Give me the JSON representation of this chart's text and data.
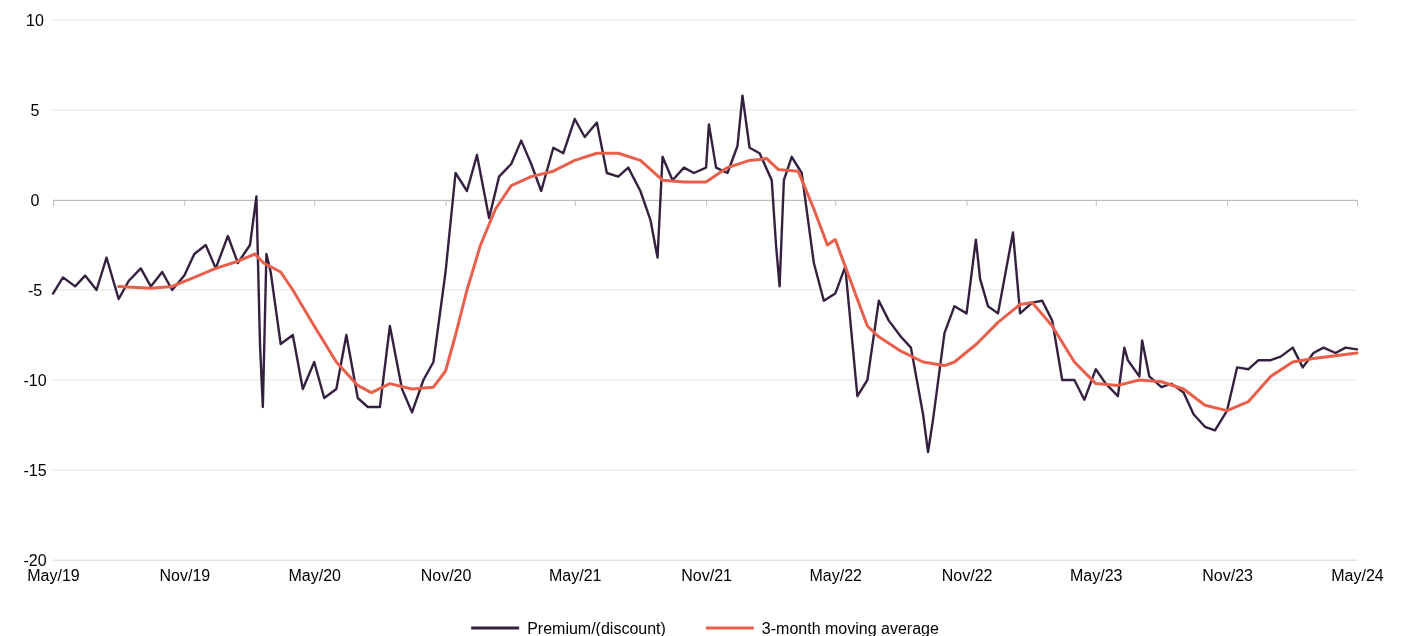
{
  "chart_data": {
    "type": "line",
    "xlim": [
      "2019-05-01",
      "2024-05-01"
    ],
    "xticks": [
      {
        "value": "2019-05-01",
        "label": "May/19"
      },
      {
        "value": "2019-11-01",
        "label": "Nov/19"
      },
      {
        "value": "2020-05-01",
        "label": "May/20"
      },
      {
        "value": "2020-11-01",
        "label": "Nov/20"
      },
      {
        "value": "2021-05-01",
        "label": "May/21"
      },
      {
        "value": "2021-11-01",
        "label": "Nov/21"
      },
      {
        "value": "2022-05-01",
        "label": "May/22"
      },
      {
        "value": "2022-11-01",
        "label": "Nov/22"
      },
      {
        "value": "2023-05-01",
        "label": "May/23"
      },
      {
        "value": "2023-11-01",
        "label": "Nov/23"
      },
      {
        "value": "2024-05-01",
        "label": "May/24"
      }
    ],
    "ylim": [
      -20,
      10
    ],
    "yticks": [
      -20,
      -15,
      -10,
      -5,
      0,
      5,
      10
    ],
    "grid": "y",
    "legend": "bottom",
    "series": [
      {
        "name": "Premium/(discount)",
        "color": "#35213f",
        "x": [
          "2019-05-01",
          "2019-05-15",
          "2019-06-01",
          "2019-06-15",
          "2019-07-01",
          "2019-07-15",
          "2019-08-01",
          "2019-08-15",
          "2019-09-01",
          "2019-09-15",
          "2019-10-01",
          "2019-10-15",
          "2019-11-01",
          "2019-11-15",
          "2019-12-01",
          "2019-12-15",
          "2020-01-01",
          "2020-01-15",
          "2020-02-01",
          "2020-02-10",
          "2020-02-15",
          "2020-02-19",
          "2020-02-24",
          "2020-03-01",
          "2020-03-15",
          "2020-04-01",
          "2020-04-15",
          "2020-05-01",
          "2020-05-15",
          "2020-06-01",
          "2020-06-15",
          "2020-07-01",
          "2020-07-15",
          "2020-08-01",
          "2020-08-15",
          "2020-09-01",
          "2020-09-15",
          "2020-10-01",
          "2020-10-15",
          "2020-11-01",
          "2020-11-15",
          "2020-12-01",
          "2020-12-15",
          "2021-01-01",
          "2021-01-15",
          "2021-02-01",
          "2021-02-15",
          "2021-03-01",
          "2021-03-15",
          "2021-04-01",
          "2021-04-15",
          "2021-05-01",
          "2021-05-15",
          "2021-06-01",
          "2021-06-15",
          "2021-07-01",
          "2021-07-15",
          "2021-08-01",
          "2021-08-15",
          "2021-08-25",
          "2021-09-01",
          "2021-09-15",
          "2021-10-01",
          "2021-10-15",
          "2021-11-01",
          "2021-11-05",
          "2021-11-15",
          "2021-12-01",
          "2021-12-15",
          "2021-12-22",
          "2022-01-01",
          "2022-01-15",
          "2022-02-01",
          "2022-02-07",
          "2022-02-12",
          "2022-02-18",
          "2022-03-01",
          "2022-03-15",
          "2022-04-01",
          "2022-04-15",
          "2022-05-01",
          "2022-05-15",
          "2022-06-01",
          "2022-06-15",
          "2022-07-01",
          "2022-07-15",
          "2022-08-01",
          "2022-08-15",
          "2022-09-01",
          "2022-09-08",
          "2022-09-15",
          "2022-10-01",
          "2022-10-15",
          "2022-11-01",
          "2022-11-14",
          "2022-11-20",
          "2022-12-01",
          "2022-12-15",
          "2023-01-05",
          "2023-01-15",
          "2023-02-01",
          "2023-02-15",
          "2023-03-01",
          "2023-03-15",
          "2023-04-01",
          "2023-04-15",
          "2023-05-01",
          "2023-05-15",
          "2023-06-01",
          "2023-06-10",
          "2023-06-15",
          "2023-07-01",
          "2023-07-05",
          "2023-07-15",
          "2023-08-01",
          "2023-08-15",
          "2023-09-01",
          "2023-09-15",
          "2023-10-01",
          "2023-10-15",
          "2023-11-01",
          "2023-11-15",
          "2023-12-01",
          "2023-12-15",
          "2024-01-01",
          "2024-01-15",
          "2024-02-01",
          "2024-02-15",
          "2024-03-01",
          "2024-03-15",
          "2024-04-01",
          "2024-04-15",
          "2024-05-01"
        ],
        "values": [
          -5.2,
          -4.3,
          -4.8,
          -4.2,
          -5.0,
          -3.2,
          -5.5,
          -4.5,
          -3.8,
          -4.8,
          -4.0,
          -5.0,
          -4.2,
          -3.0,
          -2.5,
          -3.8,
          -2.0,
          -3.5,
          -2.5,
          0.2,
          -8.0,
          -11.5,
          -3.0,
          -4.0,
          -8.0,
          -7.5,
          -10.5,
          -9.0,
          -11.0,
          -10.5,
          -7.5,
          -11.0,
          -11.5,
          -11.5,
          -7.0,
          -10.5,
          -11.8,
          -10.0,
          -9.0,
          -4.0,
          1.5,
          0.5,
          2.5,
          -1.0,
          1.3,
          2.0,
          3.3,
          2.0,
          0.5,
          2.9,
          2.6,
          4.5,
          3.5,
          4.3,
          1.5,
          1.3,
          1.8,
          0.5,
          -1.1,
          -3.2,
          2.4,
          1.1,
          1.8,
          1.5,
          1.8,
          4.2,
          1.8,
          1.5,
          3.0,
          5.8,
          2.9,
          2.6,
          1.1,
          -2.5,
          -4.8,
          1.1,
          2.4,
          1.5,
          -3.5,
          -5.6,
          -5.2,
          -3.7,
          -10.9,
          -10.0,
          -5.6,
          -6.7,
          -7.6,
          -8.2,
          -11.9,
          -14.0,
          -12.2,
          -7.4,
          -5.9,
          -6.3,
          -2.2,
          -4.4,
          -5.9,
          -6.3,
          -1.8,
          -6.3,
          -5.7,
          -5.6,
          -6.7,
          -10.0,
          -10.0,
          -11.1,
          -9.4,
          -10.2,
          -10.9,
          -8.2,
          -8.9,
          -9.8,
          -7.8,
          -9.8,
          -10.4,
          -10.2,
          -10.7,
          -11.9,
          -12.6,
          -12.8,
          -11.7,
          -9.3,
          -9.4,
          -8.9,
          -8.9,
          -8.7,
          -8.2,
          -9.3,
          -8.5,
          -8.2,
          -8.5,
          -8.2,
          -8.3
        ]
      },
      {
        "name": "3-month moving average",
        "color": "#e8604c",
        "x": [
          "2019-08-01",
          "2019-09-15",
          "2019-10-15",
          "2019-11-15",
          "2019-12-15",
          "2020-01-15",
          "2020-02-08",
          "2020-02-20",
          "2020-03-15",
          "2020-04-01",
          "2020-05-01",
          "2020-06-01",
          "2020-07-01",
          "2020-07-20",
          "2020-08-15",
          "2020-09-15",
          "2020-10-15",
          "2020-11-01",
          "2020-11-15",
          "2020-12-01",
          "2020-12-20",
          "2021-01-10",
          "2021-02-01",
          "2021-03-01",
          "2021-04-01",
          "2021-05-01",
          "2021-06-01",
          "2021-07-01",
          "2021-08-01",
          "2021-09-01",
          "2021-10-01",
          "2021-11-01",
          "2021-12-01",
          "2022-01-01",
          "2022-01-25",
          "2022-02-10",
          "2022-03-10",
          "2022-04-01",
          "2022-04-20",
          "2022-05-01",
          "2022-05-15",
          "2022-06-15",
          "2022-07-01",
          "2022-08-01",
          "2022-09-01",
          "2022-10-01",
          "2022-10-15",
          "2022-11-15",
          "2022-12-15",
          "2023-01-15",
          "2023-02-01",
          "2023-03-01",
          "2023-04-01",
          "2023-05-01",
          "2023-06-01",
          "2023-07-01",
          "2023-08-01",
          "2023-09-01",
          "2023-10-01",
          "2023-11-01",
          "2023-12-01",
          "2024-01-01",
          "2024-02-01",
          "2024-03-01",
          "2024-05-01"
        ],
        "values": [
          -4.8,
          -4.9,
          -4.8,
          -4.3,
          -3.8,
          -3.4,
          -3.0,
          -3.5,
          -4.0,
          -5.0,
          -7.0,
          -9.0,
          -10.3,
          -10.7,
          -10.2,
          -10.5,
          -10.4,
          -9.5,
          -7.5,
          -5.0,
          -2.5,
          -0.5,
          0.8,
          1.3,
          1.6,
          2.2,
          2.6,
          2.6,
          2.2,
          1.1,
          1.0,
          1.0,
          1.8,
          2.2,
          2.3,
          1.7,
          1.6,
          -0.5,
          -2.5,
          -2.2,
          -3.7,
          -7.0,
          -7.6,
          -8.4,
          -9.0,
          -9.2,
          -9.0,
          -8.0,
          -6.8,
          -5.8,
          -5.7,
          -7.0,
          -9.0,
          -10.2,
          -10.3,
          -10.0,
          -10.1,
          -10.5,
          -11.4,
          -11.7,
          -11.2,
          -9.8,
          -9.0,
          -8.8,
          -8.5
        ]
      }
    ]
  }
}
